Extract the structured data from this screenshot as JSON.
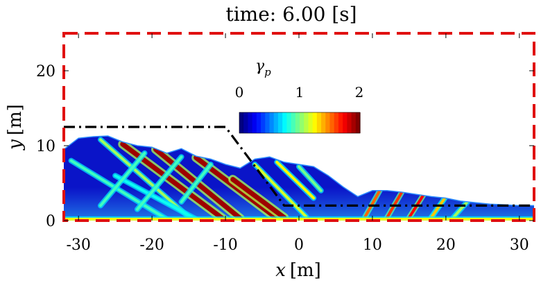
{
  "chart_data": {
    "type": "heatmap",
    "title": "time: 6.00 [s]",
    "xlabel_var": "x",
    "xlabel_unit": "[m]",
    "ylabel_var": "y",
    "ylabel_unit": "[m]",
    "xlim": [
      -32,
      32
    ],
    "ylim": [
      0,
      25
    ],
    "xticks": [
      -30,
      -20,
      -10,
      0,
      10,
      20,
      30
    ],
    "yticks": [
      0,
      10,
      20
    ],
    "xtick_labels": [
      "-30",
      "-20",
      "-10",
      "0",
      "10",
      "20",
      "30"
    ],
    "ytick_labels": [
      "0",
      "10",
      "20"
    ],
    "colorbar": {
      "title_symbol": "γ",
      "title_subscript": "p",
      "range": [
        0,
        2
      ],
      "ticks": [
        "0",
        "1",
        "2"
      ],
      "colormap": "jet"
    },
    "domain_boundary": {
      "x": [
        -32,
        32
      ],
      "y": [
        0,
        25
      ],
      "style": "red-dashed"
    },
    "initial_profile": {
      "style": "black-dashdot",
      "x": [
        -32,
        -10,
        -2,
        32
      ],
      "y": [
        12.5,
        12.5,
        2,
        2
      ]
    },
    "deposit_surface": {
      "x": [
        -32,
        -30,
        -28,
        -26,
        -24,
        -22,
        -20,
        -18,
        -16,
        -14,
        -12,
        -10,
        -8,
        -6,
        -4,
        -2,
        0,
        2,
        4,
        6,
        8,
        10,
        12,
        14,
        16,
        18,
        20,
        22,
        24,
        26,
        28,
        30,
        32
      ],
      "y": [
        9.5,
        11,
        11.2,
        11.3,
        10.5,
        10,
        9.8,
        9,
        9.6,
        8.6,
        8.2,
        7.5,
        7,
        8.2,
        8.5,
        7.8,
        7.5,
        7.2,
        6,
        4.5,
        3.2,
        4,
        4,
        3.8,
        3.5,
        3.2,
        3,
        2.6,
        2.4,
        2.2,
        2.1,
        2,
        2
      ]
    },
    "shear_bands": [
      {
        "x": [
          -24,
          -10
        ],
        "y": [
          10.2,
          0
        ],
        "gamma": 2
      },
      {
        "x": [
          -19.5,
          -8
        ],
        "y": [
          9.5,
          0.3
        ],
        "gamma": 2
      },
      {
        "x": [
          -14,
          -3
        ],
        "y": [
          8.4,
          0.3
        ],
        "gamma": 2
      },
      {
        "x": [
          -9,
          -2
        ],
        "y": [
          5.5,
          0.4
        ],
        "gamma": 2
      },
      {
        "x": [
          -27,
          -15
        ],
        "y": [
          10.8,
          0.5
        ],
        "gamma": 1.1
      },
      {
        "x": [
          -31,
          -18
        ],
        "y": [
          8,
          0.2
        ],
        "gamma": 0.9
      },
      {
        "x": [
          -25,
          -14
        ],
        "y": [
          6,
          0.2
        ],
        "gamma": 0.8
      },
      {
        "x": [
          -6,
          1
        ],
        "y": [
          7.5,
          0.5
        ],
        "gamma": 1.2
      },
      {
        "x": [
          -3,
          2
        ],
        "y": [
          7.8,
          3
        ],
        "gamma": 1.3
      },
      {
        "x": [
          0,
          3
        ],
        "y": [
          7.2,
          4
        ],
        "gamma": 1
      },
      {
        "x": [
          -21,
          -27
        ],
        "y": [
          9,
          2
        ],
        "gamma": 0.9
      },
      {
        "x": [
          -16,
          -22
        ],
        "y": [
          8.5,
          1.5
        ],
        "gamma": 0.9
      },
      {
        "x": [
          -12,
          -16
        ],
        "y": [
          7.5,
          2.5
        ],
        "gamma": 0.9
      },
      {
        "x": [
          11,
          9
        ],
        "y": [
          4,
          0.5
        ],
        "gamma": 1.6
      },
      {
        "x": [
          14,
          12
        ],
        "y": [
          3.8,
          0.4
        ],
        "gamma": 1.7
      },
      {
        "x": [
          17,
          15
        ],
        "y": [
          3.5,
          0.4
        ],
        "gamma": 1.8
      },
      {
        "x": [
          20,
          18
        ],
        "y": [
          3.2,
          0.4
        ],
        "gamma": 1.4
      },
      {
        "x": [
          23,
          21
        ],
        "y": [
          2.6,
          0.4
        ],
        "gamma": 1.1
      },
      {
        "x": [
          -32,
          32
        ],
        "y": [
          0.2,
          0.2
        ],
        "gamma": 1.3
      }
    ],
    "colors": {
      "domain": "#e01010",
      "profile": "#000000",
      "background": "#ffffff"
    }
  }
}
